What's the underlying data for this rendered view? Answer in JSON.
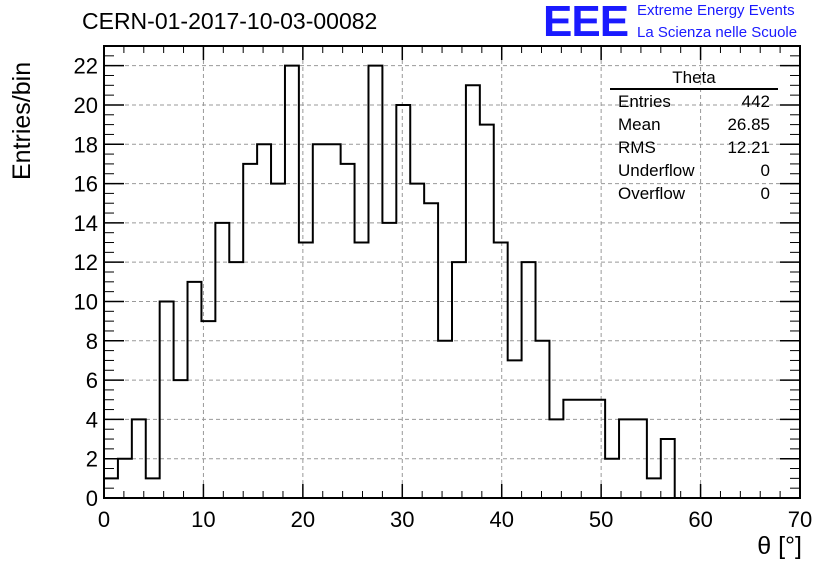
{
  "header": {
    "title": "CERN-01-2017-10-03-00082",
    "logo_text": "EEE",
    "logo_line1": "Extreme Energy Events",
    "logo_line2": "La Scienza nelle Scuole"
  },
  "stats_box": {
    "title": "Theta",
    "rows": [
      {
        "label": "Entries",
        "value": "442"
      },
      {
        "label": "Mean",
        "value": "26.85"
      },
      {
        "label": "RMS",
        "value": "12.21"
      },
      {
        "label": "Underflow",
        "value": "0"
      },
      {
        "label": "Overflow",
        "value": "0"
      }
    ]
  },
  "colors": {
    "logo": "#1a1aff",
    "line": "#000000",
    "grid": "#999999"
  },
  "chart_data": {
    "type": "bar",
    "style": "step-histogram",
    "title": "CERN-01-2017-10-03-00082",
    "xlabel": "θ [°]",
    "ylabel": "Entries/bin",
    "xlim": [
      0,
      70
    ],
    "ylim": [
      0,
      23
    ],
    "bin_width": 1.4,
    "x_ticks": [
      0,
      10,
      20,
      30,
      40,
      50,
      60,
      70
    ],
    "y_ticks": [
      0,
      2,
      4,
      6,
      8,
      10,
      12,
      14,
      16,
      18,
      20,
      22
    ],
    "grid": true,
    "legend": "none",
    "values": [
      1,
      2,
      4,
      1,
      10,
      6,
      11,
      9,
      14,
      12,
      17,
      18,
      16,
      22,
      13,
      18,
      18,
      17,
      13,
      22,
      14,
      20,
      16,
      15,
      8,
      12,
      21,
      19,
      13,
      7,
      12,
      8,
      4,
      5,
      5,
      5,
      2,
      4,
      4,
      1,
      3,
      0,
      0,
      0,
      0,
      0,
      0,
      0,
      0,
      0
    ]
  }
}
